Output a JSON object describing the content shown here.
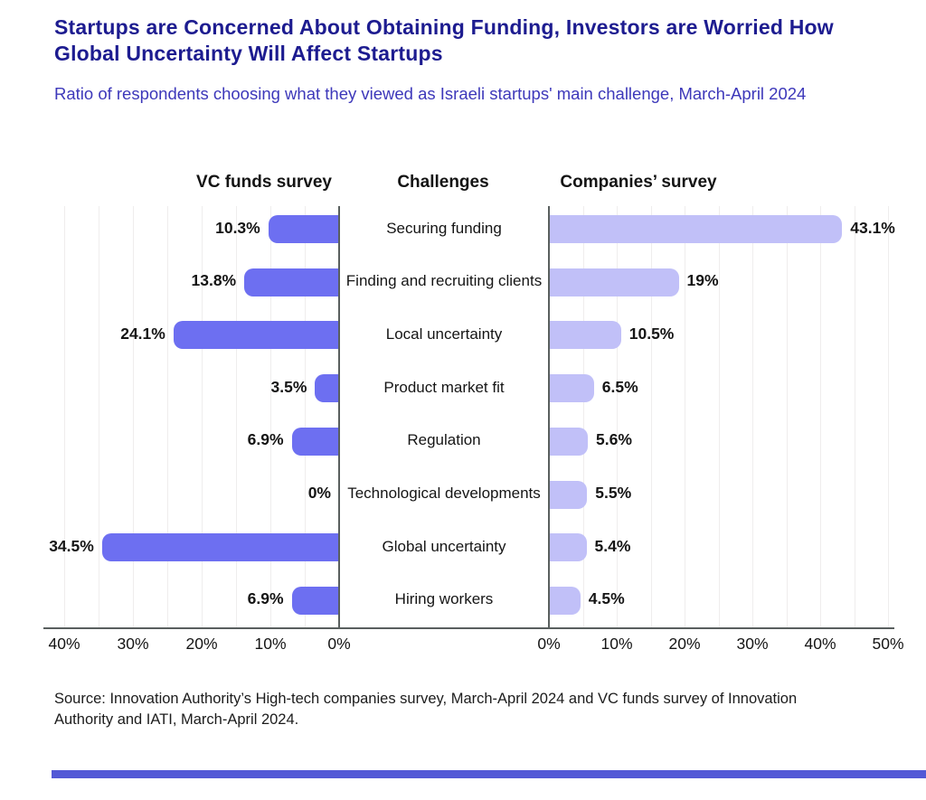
{
  "page_title": "Startups are Concerned About Obtaining Funding, Investors are Worried How Global Uncertainty Will Affect Startups",
  "page_subtitle": "Ratio of respondents choosing what they viewed as Israeli startups' main challenge, March-April 2024",
  "column_headers": {
    "left": "VC funds survey",
    "center": "Challenges",
    "right": "Companies’ survey"
  },
  "source_note": "Source: Innovation Authority’s High-tech companies survey, March-April 2024 and VC funds survey of Innovation Authority and IATI, March-April 2024.",
  "chart_data": {
    "type": "bar",
    "variant": "diverging-horizontal-butterfly",
    "title": "Startups are Concerned About Obtaining Funding, Investors are Worried How Global Uncertainty Will Affect Startups",
    "subtitle": "Ratio of respondents choosing what they viewed as Israeli startups' main challenge, March-April 2024",
    "categories": [
      "Securing funding",
      "Finding and recruiting clients",
      "Local uncertainty",
      "Product market fit",
      "Regulation",
      "Technological developments",
      "Global uncertainty",
      "Hiring workers"
    ],
    "series": [
      {
        "name": "VC funds survey",
        "side": "left",
        "values": [
          10.3,
          13.8,
          24.1,
          3.5,
          6.9,
          0,
          34.5,
          6.9
        ]
      },
      {
        "name": "Companies’ survey",
        "side": "right",
        "values": [
          43.1,
          19,
          10.5,
          6.5,
          5.6,
          5.5,
          5.4,
          4.5
        ]
      }
    ],
    "value_labels": {
      "vc": [
        "10.3%",
        "13.8%",
        "24.1%",
        "3.5%",
        "6.9%",
        "0%",
        "34.5%",
        "6.9%"
      ],
      "companies": [
        "43.1%",
        "19%",
        "10.5%",
        "6.5%",
        "5.6%",
        "5.5%",
        "5.4%",
        "4.5%"
      ]
    },
    "left_axis": {
      "ticks": [
        "40%",
        "30%",
        "20%",
        "10%",
        "0%"
      ],
      "range": [
        0,
        40
      ],
      "direction": "right-to-left"
    },
    "right_axis": {
      "ticks": [
        "0%",
        "10%",
        "20%",
        "30%",
        "40%",
        "50%"
      ],
      "range": [
        0,
        50
      ]
    },
    "grid": {
      "show": true,
      "interval_pct": 5
    },
    "legend_position": "column headers above chart"
  },
  "colors": {
    "title": "#1d1c90",
    "subtitle": "#3d38ba",
    "vc_bar": "#6d6ff1",
    "companies_bar": "#c1c0f8",
    "axis": "#595f5e",
    "grid": "#efeded",
    "text": "#151515",
    "footer_bar": "#5359d6"
  }
}
